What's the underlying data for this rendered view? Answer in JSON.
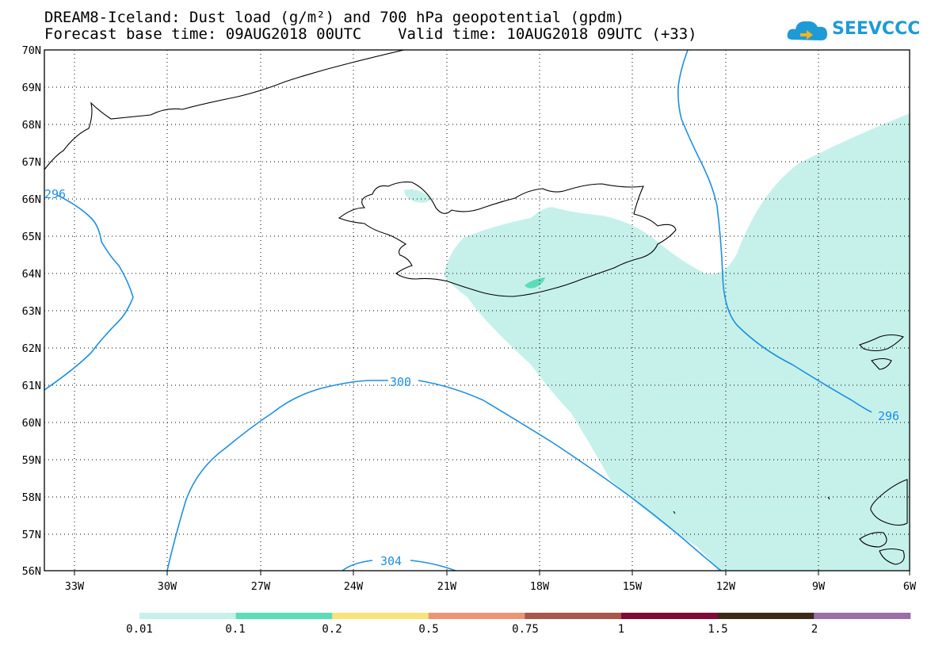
{
  "title": {
    "line1": "DREAM8-Iceland: Dust load (g/m²) and 700 hPa geopotential (gpdm)",
    "line2": "Forecast base time: 09AUG2018 00UTC    Valid time: 10AUG2018 09UTC (+33)"
  },
  "logo": {
    "text": "SEEVCCC",
    "icon": "cloud-icon",
    "color": "#1e9bd7"
  },
  "axes": {
    "lat_labels": [
      "70N",
      "69N",
      "68N",
      "67N",
      "66N",
      "65N",
      "64N",
      "63N",
      "62N",
      "61N",
      "60N",
      "59N",
      "58N",
      "57N",
      "56N"
    ],
    "lon_labels": [
      "33W",
      "30W",
      "27W",
      "24W",
      "21W",
      "18W",
      "15W",
      "12W",
      "9W",
      "6W"
    ],
    "lon_range": [
      -34,
      -6
    ],
    "lat_range": [
      56,
      70
    ],
    "gridlines": "dotted"
  },
  "contours": {
    "color": "#1e8fe1",
    "labels": [
      "296",
      "300",
      "304",
      "296"
    ]
  },
  "dust_fill_color": "#c6f1ea",
  "colorbar": {
    "labels": [
      "0.01",
      "0.1",
      "0.2",
      "0.5",
      "0.75",
      "1",
      "1.5",
      "2"
    ],
    "colors": [
      "#c6f1ea",
      "#5ddcb8",
      "#f7e47a",
      "#ec9574",
      "#a8574a",
      "#800936",
      "#3d2a19",
      "#9b6ea5"
    ]
  }
}
